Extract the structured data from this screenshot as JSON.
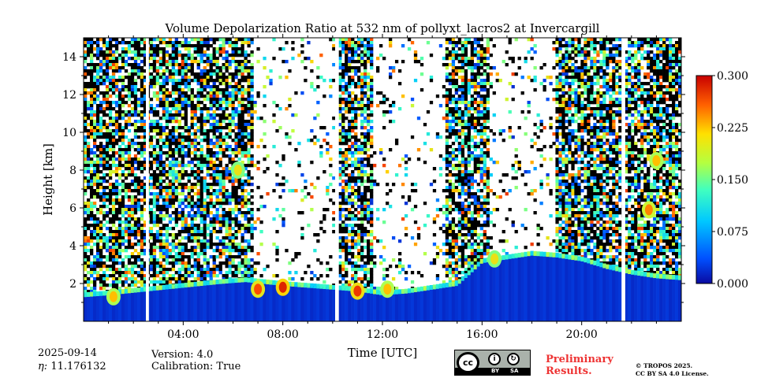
{
  "chart_data": {
    "type": "heatmap",
    "title": "Volume Depolarization Ratio at 532 nm of pollyxt_lacros2 at Invercargill",
    "xlabel": "Time [UTC]",
    "ylabel": "Height [km]",
    "xlim_hours": [
      0,
      24
    ],
    "ylim_km": [
      0,
      15
    ],
    "x_ticks": [
      {
        "hour": 4,
        "label": "04:00"
      },
      {
        "hour": 8,
        "label": "08:00"
      },
      {
        "hour": 12,
        "label": "12:00"
      },
      {
        "hour": 16,
        "label": "16:00"
      },
      {
        "hour": 20,
        "label": "20:00"
      }
    ],
    "y_ticks": [
      {
        "km": 2,
        "label": "2"
      },
      {
        "km": 4,
        "label": "4"
      },
      {
        "km": 6,
        "label": "6"
      },
      {
        "km": 8,
        "label": "8"
      },
      {
        "km": 10,
        "label": "10"
      },
      {
        "km": 12,
        "label": "12"
      },
      {
        "km": 14,
        "label": "14"
      }
    ],
    "colorbar": {
      "range": [
        0.0,
        0.3
      ],
      "ticks": [
        {
          "value": 0.0,
          "label": "0.000"
        },
        {
          "value": 0.075,
          "label": "0.075"
        },
        {
          "value": 0.15,
          "label": "0.150"
        },
        {
          "value": 0.225,
          "label": "0.225"
        },
        {
          "value": 0.3,
          "label": "0.300"
        }
      ],
      "colormap": [
        "#0a0aa0",
        "#0055ff",
        "#00c8ff",
        "#40ffc0",
        "#c0ff40",
        "#ffd000",
        "#ff5000",
        "#c00000"
      ]
    },
    "boundary_layer_top_km": [
      [
        0.0,
        1.4
      ],
      [
        1.0,
        1.5
      ],
      [
        2.5,
        1.7
      ],
      [
        4.0,
        1.9
      ],
      [
        5.5,
        2.1
      ],
      [
        6.5,
        2.2
      ],
      [
        8.0,
        2.0
      ],
      [
        9.0,
        1.9
      ],
      [
        10.0,
        1.8
      ],
      [
        11.0,
        1.7
      ],
      [
        12.0,
        1.5
      ],
      [
        13.0,
        1.6
      ],
      [
        14.0,
        1.8
      ],
      [
        15.0,
        2.0
      ],
      [
        15.5,
        2.6
      ],
      [
        16.0,
        3.2
      ],
      [
        17.0,
        3.4
      ],
      [
        18.0,
        3.6
      ],
      [
        19.0,
        3.5
      ],
      [
        20.0,
        3.3
      ],
      [
        21.0,
        2.9
      ],
      [
        22.0,
        2.6
      ],
      [
        23.0,
        2.4
      ],
      [
        24.0,
        2.3
      ]
    ],
    "depolarization_features": [
      {
        "hour": 23.0,
        "height_km": 8.5,
        "value": 0.22
      },
      {
        "hour": 22.7,
        "height_km": 5.9,
        "value": 0.24
      },
      {
        "hour": 6.2,
        "height_km": 8.0,
        "value": 0.2
      },
      {
        "hour": 7.0,
        "height_km": 1.7,
        "value": 0.26
      },
      {
        "hour": 8.0,
        "height_km": 1.8,
        "value": 0.28
      },
      {
        "hour": 11.0,
        "height_km": 1.6,
        "value": 0.27
      },
      {
        "hour": 12.2,
        "height_km": 1.7,
        "value": 0.22
      },
      {
        "hour": 16.5,
        "height_km": 3.3,
        "value": 0.2
      },
      {
        "hour": 1.2,
        "height_km": 1.3,
        "value": 0.22
      }
    ],
    "gaps_hours": [
      [
        2.5,
        2.62
      ],
      [
        10.1,
        10.25
      ],
      [
        21.6,
        21.75
      ]
    ],
    "sparse_signal_periods_hours": [
      [
        6.8,
        10.1
      ],
      [
        11.6,
        14.5
      ],
      [
        16.3,
        18.9
      ]
    ]
  },
  "info": {
    "date": "2025-09-14",
    "eta": "11.176132",
    "eta_label": "η: ",
    "version": "Version: 4.0",
    "calibration": "Calibration: True",
    "license_badge": {
      "by": "BY",
      "sa": "SA",
      "cc": "cc"
    },
    "preliminary_line1": "Preliminary",
    "preliminary_line2": "Results.",
    "copyright_line1": "© TROPOS 2025.",
    "copyright_line2": "CC BY SA 4.0 License."
  }
}
